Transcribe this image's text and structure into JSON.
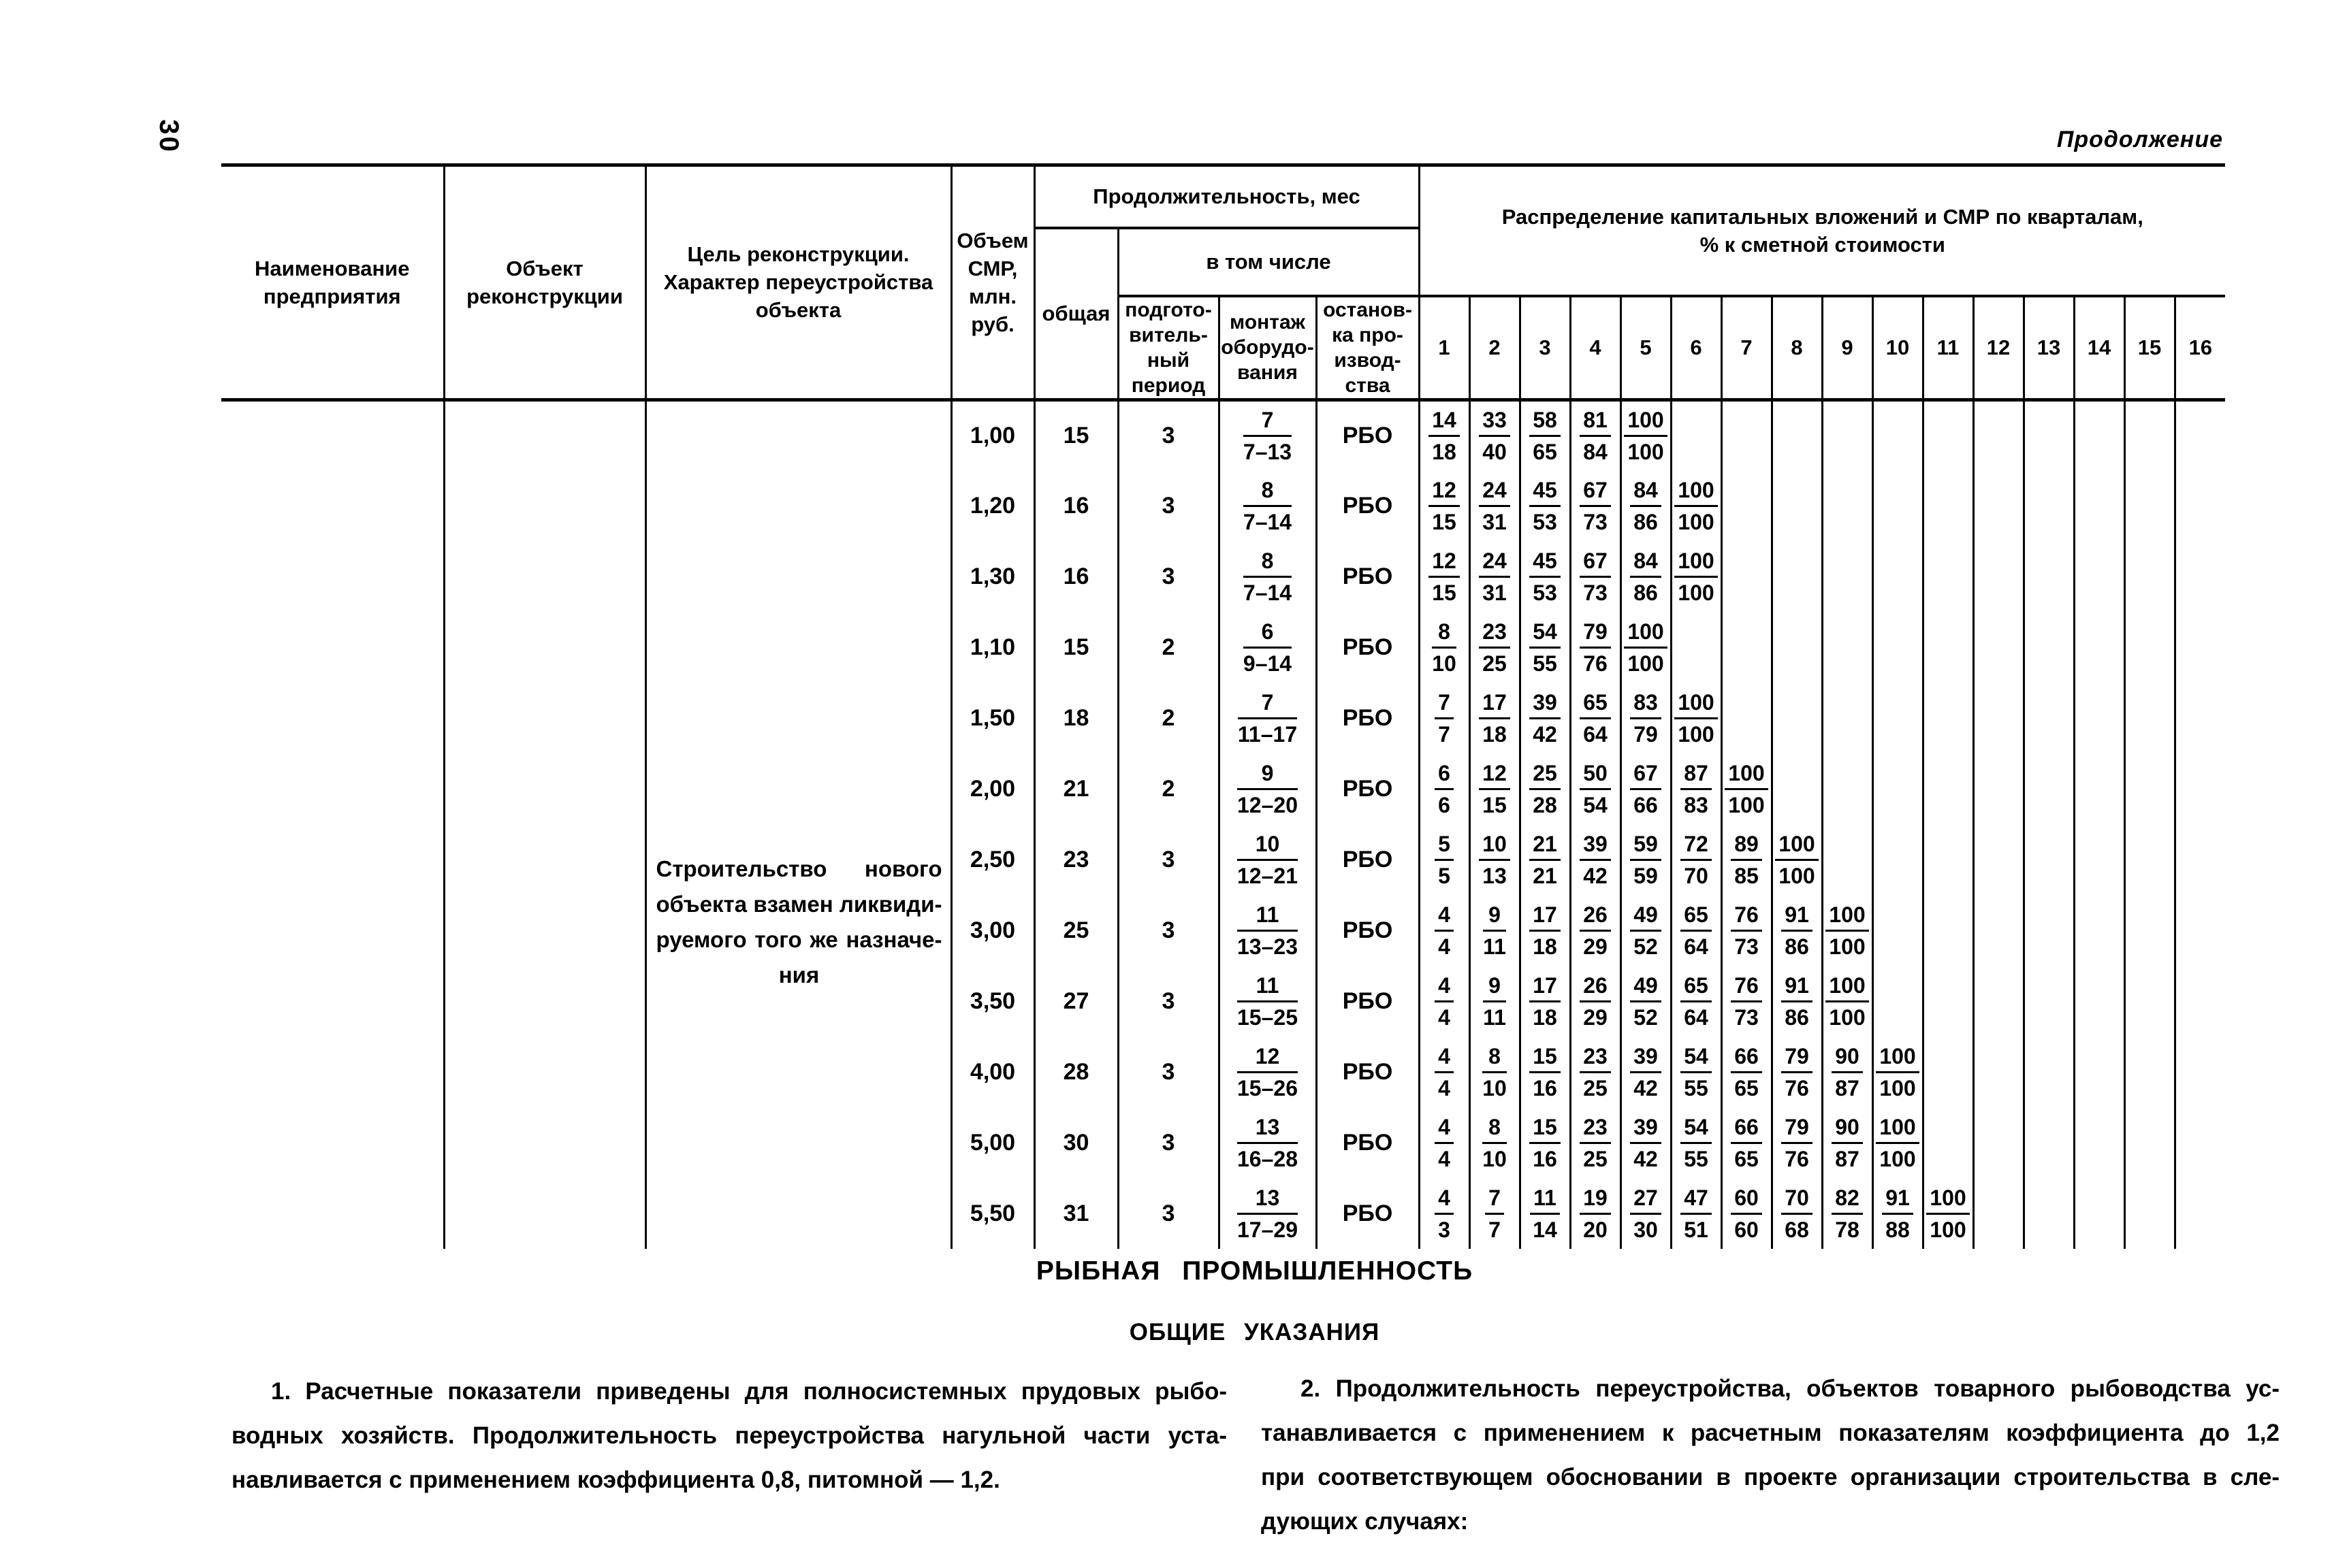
{
  "page": {
    "number": "30",
    "continuation": "Продолжение"
  },
  "table": {
    "headers": {
      "name": "Наименование\nпредприятия",
      "object": "Объект\nреконструкции",
      "purpose": "Цель реконструкции.\nХарактер переустройства\nобъекта",
      "volume": "Объем\nСМР,\nмлн.\nруб.",
      "duration": "Продолжительность, мес",
      "total": "общая",
      "including": "в том числе",
      "prep": "подгото-\nвитель-\nный\nпериод",
      "montage": "монтаж\nоборудо-\nвания",
      "stop": "останов-\nка про-\nизвод-\nства",
      "distribution": "Распределение капитальных вложений и СМР по кварталам,\n% к сметной стоимости",
      "quarters": [
        "1",
        "2",
        "3",
        "4",
        "5",
        "6",
        "7",
        "8",
        "9",
        "10",
        "11",
        "12",
        "13",
        "14",
        "15",
        "16"
      ]
    },
    "purpose_lines": [
      "Строительство нового",
      "объекта взамен ликвиди-",
      "руемого того же назначе-",
      "ния"
    ],
    "rows": [
      {
        "volume": "1,00",
        "total": "15",
        "prep": "3",
        "montage": [
          "7",
          "7–13"
        ],
        "stop": "РБО",
        "quarters": [
          [
            "14",
            "18"
          ],
          [
            "33",
            "40"
          ],
          [
            "58",
            "65"
          ],
          [
            "81",
            "84"
          ],
          [
            "100",
            "100"
          ]
        ]
      },
      {
        "volume": "1,20",
        "total": "16",
        "prep": "3",
        "montage": [
          "8",
          "7–14"
        ],
        "stop": "РБО",
        "quarters": [
          [
            "12",
            "15"
          ],
          [
            "24",
            "31"
          ],
          [
            "45",
            "53"
          ],
          [
            "67",
            "73"
          ],
          [
            "84",
            "86"
          ],
          [
            "100",
            "100"
          ]
        ]
      },
      {
        "volume": "1,30",
        "total": "16",
        "prep": "3",
        "montage": [
          "8",
          "7–14"
        ],
        "stop": "РБО",
        "quarters": [
          [
            "12",
            "15"
          ],
          [
            "24",
            "31"
          ],
          [
            "45",
            "53"
          ],
          [
            "67",
            "73"
          ],
          [
            "84",
            "86"
          ],
          [
            "100",
            "100"
          ]
        ]
      },
      {
        "volume": "1,10",
        "total": "15",
        "prep": "2",
        "montage": [
          "6",
          "9–14"
        ],
        "stop": "РБО",
        "quarters": [
          [
            "8",
            "10"
          ],
          [
            "23",
            "25"
          ],
          [
            "54",
            "55"
          ],
          [
            "79",
            "76"
          ],
          [
            "100",
            "100"
          ]
        ]
      },
      {
        "volume": "1,50",
        "total": "18",
        "prep": "2",
        "montage": [
          "7",
          "11–17"
        ],
        "stop": "РБО",
        "quarters": [
          [
            "7",
            "7"
          ],
          [
            "17",
            "18"
          ],
          [
            "39",
            "42"
          ],
          [
            "65",
            "64"
          ],
          [
            "83",
            "79"
          ],
          [
            "100",
            "100"
          ]
        ]
      },
      {
        "volume": "2,00",
        "total": "21",
        "prep": "2",
        "montage": [
          "9",
          "12–20"
        ],
        "stop": "РБО",
        "quarters": [
          [
            "6",
            "6"
          ],
          [
            "12",
            "15"
          ],
          [
            "25",
            "28"
          ],
          [
            "50",
            "54"
          ],
          [
            "67",
            "66"
          ],
          [
            "87",
            "83"
          ],
          [
            "100",
            "100"
          ]
        ]
      },
      {
        "volume": "2,50",
        "total": "23",
        "prep": "3",
        "montage": [
          "10",
          "12–21"
        ],
        "stop": "РБО",
        "quarters": [
          [
            "5",
            "5"
          ],
          [
            "10",
            "13"
          ],
          [
            "21",
            "21"
          ],
          [
            "39",
            "42"
          ],
          [
            "59",
            "59"
          ],
          [
            "72",
            "70"
          ],
          [
            "89",
            "85"
          ],
          [
            "100",
            "100"
          ]
        ]
      },
      {
        "volume": "3,00",
        "total": "25",
        "prep": "3",
        "montage": [
          "11",
          "13–23"
        ],
        "stop": "РБО",
        "quarters": [
          [
            "4",
            "4"
          ],
          [
            "9",
            "11"
          ],
          [
            "17",
            "18"
          ],
          [
            "26",
            "29"
          ],
          [
            "49",
            "52"
          ],
          [
            "65",
            "64"
          ],
          [
            "76",
            "73"
          ],
          [
            "91",
            "86"
          ],
          [
            "100",
            "100"
          ]
        ]
      },
      {
        "volume": "3,50",
        "total": "27",
        "prep": "3",
        "montage": [
          "11",
          "15–25"
        ],
        "stop": "РБО",
        "quarters": [
          [
            "4",
            "4"
          ],
          [
            "9",
            "11"
          ],
          [
            "17",
            "18"
          ],
          [
            "26",
            "29"
          ],
          [
            "49",
            "52"
          ],
          [
            "65",
            "64"
          ],
          [
            "76",
            "73"
          ],
          [
            "91",
            "86"
          ],
          [
            "100",
            "100"
          ]
        ]
      },
      {
        "volume": "4,00",
        "total": "28",
        "prep": "3",
        "montage": [
          "12",
          "15–26"
        ],
        "stop": "РБО",
        "quarters": [
          [
            "4",
            "4"
          ],
          [
            "8",
            "10"
          ],
          [
            "15",
            "16"
          ],
          [
            "23",
            "25"
          ],
          [
            "39",
            "42"
          ],
          [
            "54",
            "55"
          ],
          [
            "66",
            "65"
          ],
          [
            "79",
            "76"
          ],
          [
            "90",
            "87"
          ],
          [
            "100",
            "100"
          ]
        ]
      },
      {
        "volume": "5,00",
        "total": "30",
        "prep": "3",
        "montage": [
          "13",
          "16–28"
        ],
        "stop": "РБО",
        "quarters": [
          [
            "4",
            "4"
          ],
          [
            "8",
            "10"
          ],
          [
            "15",
            "16"
          ],
          [
            "23",
            "25"
          ],
          [
            "39",
            "42"
          ],
          [
            "54",
            "55"
          ],
          [
            "66",
            "65"
          ],
          [
            "79",
            "76"
          ],
          [
            "90",
            "87"
          ],
          [
            "100",
            "100"
          ]
        ]
      },
      {
        "volume": "5,50",
        "total": "31",
        "prep": "3",
        "montage": [
          "13",
          "17–29"
        ],
        "stop": "РБО",
        "quarters": [
          [
            "4",
            "3"
          ],
          [
            "7",
            "7"
          ],
          [
            "11",
            "14"
          ],
          [
            "19",
            "20"
          ],
          [
            "27",
            "30"
          ],
          [
            "47",
            "51"
          ],
          [
            "60",
            "60"
          ],
          [
            "70",
            "68"
          ],
          [
            "82",
            "78"
          ],
          [
            "91",
            "88"
          ],
          [
            "100",
            "100"
          ]
        ]
      }
    ]
  },
  "sections": {
    "industry_title": "РЫБНАЯ ПРОМЫШЛЕННОСТЬ",
    "general_title": "ОБЩИЕ УКАЗАНИЯ",
    "para1_lines": [
      "1. Расчетные показатели приведены для полносистемных прудовых рыбо-",
      "водных хозяйств. Продолжительность переустройства нагульной части уста-",
      "навливается с применением коэффициента 0,8, питомной — 1,2."
    ],
    "para2_lines": [
      "2. Продолжительность переустройства, объектов товарного рыбоводства ус-",
      "танавливается с применением к расчетным показателям коэффициента до 1,2",
      "при соответствующем обосновании в проекте организации строительства в сле-",
      "дующих случаях:"
    ]
  }
}
